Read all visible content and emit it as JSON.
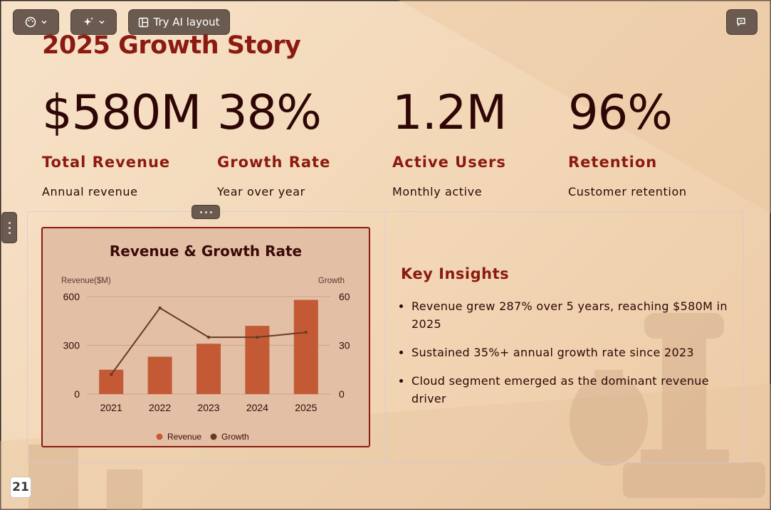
{
  "toolbar": {
    "theme_icon": "palette-icon",
    "ai_icon": "sparkle-icon",
    "layout_label": "Try AI layout",
    "layout_icon": "layout-icon",
    "comment_icon": "comment-icon"
  },
  "slide": {
    "title": "2025 Growth Story",
    "stats": [
      {
        "value": "$580M",
        "label": "Total Revenue",
        "desc": "Annual revenue"
      },
      {
        "value": "38%",
        "label": "Growth Rate",
        "desc": "Year over year"
      },
      {
        "value": "1.2M",
        "label": "Active Users",
        "desc": "Monthly active"
      },
      {
        "value": "96%",
        "label": "Retention",
        "desc": "Customer retention"
      }
    ],
    "insights_title": "Key Insights",
    "insights": [
      "Revenue grew 287% over 5 years, reaching $580M in 2025",
      "Sustained 35%+ annual growth rate since 2023",
      "Cloud segment emerged as the dominant revenue driver"
    ],
    "page_number": "21"
  },
  "colors": {
    "accent": "#8b1a10",
    "bar": "#c45a35",
    "line": "#6b3a22"
  },
  "chart_data": {
    "type": "bar",
    "title": "Revenue & Growth Rate",
    "categories": [
      "2021",
      "2022",
      "2023",
      "2024",
      "2025"
    ],
    "series": [
      {
        "name": "Revenue",
        "type": "bar",
        "axis": "left",
        "values": [
          150,
          230,
          310,
          420,
          580
        ]
      },
      {
        "name": "Growth",
        "type": "line",
        "axis": "right",
        "values": [
          12,
          53,
          35,
          35,
          38
        ]
      }
    ],
    "ylabel_left": "Revenue($M)",
    "ylabel_right": "Growth",
    "ylim_left": [
      0,
      600
    ],
    "ylim_right": [
      0,
      60
    ],
    "yticks_left": [
      "0",
      "300",
      "600"
    ],
    "yticks_right": [
      "0",
      "30",
      "60"
    ],
    "grid": true,
    "legend": "bottom"
  }
}
